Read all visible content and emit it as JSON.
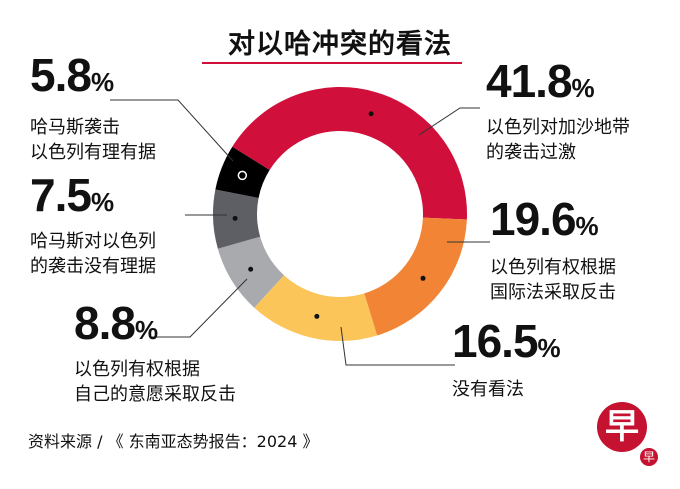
{
  "chart_data": {
    "type": "pie",
    "title": "对以哈冲突的看法",
    "donut": true,
    "slices": [
      {
        "label": "以色列对加沙地带的袭击过激",
        "lines": [
          "以色列对加沙地带",
          "的袭击过激"
        ],
        "value": 41.8,
        "color": "#d0103a"
      },
      {
        "label": "以色列有权根据国际法采取反击",
        "lines": [
          "以色列有权根据",
          "国际法采取反击"
        ],
        "value": 19.6,
        "color": "#f28535"
      },
      {
        "label": "没有看法",
        "lines": [
          "没有看法"
        ],
        "value": 16.5,
        "color": "#fcc55a"
      },
      {
        "label": "以色列有权根据自己的意愿采取反击",
        "lines": [
          "以色列有权根据",
          "自己的意愿采取反击"
        ],
        "value": 8.8,
        "color": "#a9aaae"
      },
      {
        "label": "哈马斯对以色列的袭击没有理据",
        "lines": [
          "哈马斯对以色列",
          "的袭击没有理据"
        ],
        "value": 7.5,
        "color": "#5e5f64"
      },
      {
        "label": "哈马斯袭击以色列有理有据",
        "lines": [
          "哈马斯袭击",
          "以色列有理有据"
        ],
        "value": 5.8,
        "color": "#000000"
      }
    ],
    "value_format": "%"
  },
  "source": "资料来源 / 《 东南亚态势报告：2024 》",
  "logo_text": "早"
}
